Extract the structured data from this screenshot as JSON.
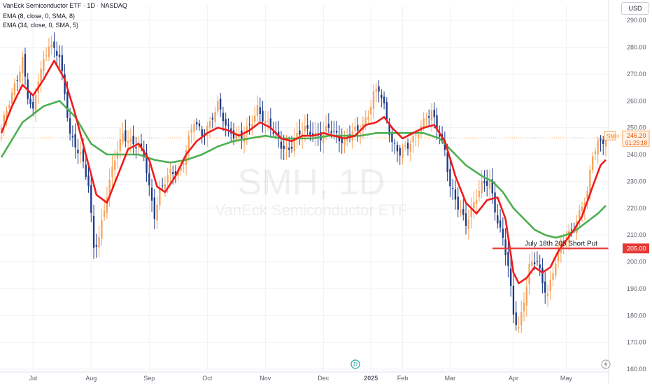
{
  "header": {
    "title": "VanEck Semiconductor ETF · 1D · NASDAQ",
    "indicator1": "EMA (8, close, 0, SMA, 8)",
    "indicator2": "EMA (34, close, 0, SMA, 5)"
  },
  "currency_button": "USD",
  "watermark": {
    "symbol": "SMH, 1D",
    "name": "VanEck Semiconductor ETF"
  },
  "price_tag": {
    "symbol": "SMH",
    "price": "246.20",
    "countdown": "01:25:18"
  },
  "level_tag": "205.00",
  "annotation": "July 18th 205 Short Put",
  "event_badge": "D",
  "colors": {
    "up": "#26a69a",
    "down": "#2962ff",
    "candle_up": "#f7a35c",
    "candle_down": "#1e3a8a",
    "ema_fast": "#ef1c1c",
    "ema_slow": "#4caf50",
    "level": "#e53935"
  },
  "chart_data": {
    "type": "candlestick",
    "ylim": [
      160,
      295
    ],
    "yticks": [
      160,
      170,
      180,
      190,
      200,
      210,
      220,
      230,
      240,
      250,
      260,
      270,
      280,
      290
    ],
    "ytick_labels": [
      "160.00",
      "170.00",
      "180.00",
      "190.00",
      "200.00",
      "210.00",
      "220.00",
      "230.00",
      "240.00",
      "250.00",
      "260.00",
      "270.00",
      "280.00",
      "290.00"
    ],
    "x_labels": [
      "Jul",
      "Aug",
      "Sep",
      "Oct",
      "Nov",
      "Dec",
      "2025",
      "Feb",
      "Mar",
      "Apr",
      "May"
    ],
    "x_label_positions": [
      12,
      34,
      56,
      78,
      100,
      122,
      140,
      152,
      170,
      194,
      214
    ],
    "n_bars": 230,
    "last_price": 246.2,
    "horizontal_level": 205.0,
    "anchors": [
      [
        0,
        250
      ],
      [
        4,
        262
      ],
      [
        8,
        276
      ],
      [
        10,
        262
      ],
      [
        12,
        255
      ],
      [
        14,
        268
      ],
      [
        18,
        282
      ],
      [
        22,
        276
      ],
      [
        24,
        262
      ],
      [
        26,
        248
      ],
      [
        30,
        240
      ],
      [
        33,
        228
      ],
      [
        35,
        205
      ],
      [
        37,
        210
      ],
      [
        40,
        225
      ],
      [
        43,
        238
      ],
      [
        46,
        248
      ],
      [
        50,
        244
      ],
      [
        54,
        240
      ],
      [
        56,
        228
      ],
      [
        58,
        218
      ],
      [
        60,
        226
      ],
      [
        64,
        233
      ],
      [
        68,
        235
      ],
      [
        70,
        242
      ],
      [
        73,
        252
      ],
      [
        76,
        248
      ],
      [
        79,
        252
      ],
      [
        82,
        258
      ],
      [
        85,
        251
      ],
      [
        88,
        248
      ],
      [
        91,
        246
      ],
      [
        94,
        250
      ],
      [
        97,
        258
      ],
      [
        100,
        252
      ],
      [
        103,
        248
      ],
      [
        106,
        244
      ],
      [
        109,
        242
      ],
      [
        112,
        246
      ],
      [
        115,
        250
      ],
      [
        118,
        248
      ],
      [
        121,
        246
      ],
      [
        124,
        250
      ],
      [
        127,
        248
      ],
      [
        130,
        244
      ],
      [
        133,
        248
      ],
      [
        136,
        250
      ],
      [
        139,
        255
      ],
      [
        141,
        262
      ],
      [
        143,
        264
      ],
      [
        145,
        258
      ],
      [
        148,
        245
      ],
      [
        151,
        240
      ],
      [
        154,
        243
      ],
      [
        157,
        248
      ],
      [
        160,
        252
      ],
      [
        163,
        255
      ],
      [
        166,
        248
      ],
      [
        168,
        242
      ],
      [
        170,
        228
      ],
      [
        173,
        220
      ],
      [
        176,
        215
      ],
      [
        179,
        222
      ],
      [
        182,
        228
      ],
      [
        185,
        230
      ],
      [
        187,
        220
      ],
      [
        190,
        208
      ],
      [
        192,
        198
      ],
      [
        194,
        180
      ],
      [
        196,
        176
      ],
      [
        198,
        186
      ],
      [
        200,
        198
      ],
      [
        203,
        200
      ],
      [
        205,
        192
      ],
      [
        207,
        189
      ],
      [
        210,
        200
      ],
      [
        213,
        208
      ],
      [
        216,
        212
      ],
      [
        219,
        218
      ],
      [
        222,
        225
      ],
      [
        224,
        240
      ],
      [
        226,
        245
      ],
      [
        229,
        246.2
      ]
    ],
    "ema_fast_anchors": [
      [
        0,
        248
      ],
      [
        4,
        258
      ],
      [
        8,
        266
      ],
      [
        12,
        262
      ],
      [
        16,
        268
      ],
      [
        20,
        275
      ],
      [
        24,
        268
      ],
      [
        28,
        255
      ],
      [
        32,
        240
      ],
      [
        36,
        225
      ],
      [
        40,
        222
      ],
      [
        44,
        232
      ],
      [
        48,
        242
      ],
      [
        52,
        244
      ],
      [
        56,
        238
      ],
      [
        59,
        228
      ],
      [
        62,
        226
      ],
      [
        66,
        232
      ],
      [
        70,
        240
      ],
      [
        74,
        245
      ],
      [
        78,
        248
      ],
      [
        82,
        250
      ],
      [
        86,
        249
      ],
      [
        90,
        247
      ],
      [
        94,
        249
      ],
      [
        98,
        252
      ],
      [
        102,
        250
      ],
      [
        106,
        246
      ],
      [
        110,
        245
      ],
      [
        114,
        247
      ],
      [
        118,
        247
      ],
      [
        122,
        248
      ],
      [
        126,
        247
      ],
      [
        130,
        246
      ],
      [
        134,
        247
      ],
      [
        138,
        251
      ],
      [
        142,
        252
      ],
      [
        145,
        254
      ],
      [
        148,
        250
      ],
      [
        152,
        246
      ],
      [
        156,
        248
      ],
      [
        160,
        250
      ],
      [
        164,
        251
      ],
      [
        168,
        245
      ],
      [
        172,
        232
      ],
      [
        176,
        222
      ],
      [
        180,
        218
      ],
      [
        184,
        223
      ],
      [
        188,
        224
      ],
      [
        191,
        216
      ],
      [
        194,
        196
      ],
      [
        196,
        192
      ],
      [
        199,
        194
      ],
      [
        202,
        198
      ],
      [
        205,
        196
      ],
      [
        208,
        198
      ],
      [
        211,
        204
      ],
      [
        214,
        208
      ],
      [
        217,
        212
      ],
      [
        220,
        217
      ],
      [
        224,
        228
      ],
      [
        227,
        236
      ],
      [
        229,
        238
      ]
    ],
    "ema_slow_anchors": [
      [
        0,
        239
      ],
      [
        8,
        252
      ],
      [
        16,
        258
      ],
      [
        22,
        260
      ],
      [
        28,
        254
      ],
      [
        34,
        244
      ],
      [
        40,
        240
      ],
      [
        46,
        240
      ],
      [
        52,
        240
      ],
      [
        58,
        238
      ],
      [
        64,
        237
      ],
      [
        70,
        238
      ],
      [
        76,
        240
      ],
      [
        82,
        243
      ],
      [
        88,
        245
      ],
      [
        94,
        246
      ],
      [
        100,
        247
      ],
      [
        106,
        246
      ],
      [
        112,
        246
      ],
      [
        118,
        246
      ],
      [
        124,
        247
      ],
      [
        130,
        247
      ],
      [
        136,
        247
      ],
      [
        142,
        248
      ],
      [
        148,
        248
      ],
      [
        154,
        248
      ],
      [
        160,
        248
      ],
      [
        166,
        246
      ],
      [
        170,
        242
      ],
      [
        176,
        236
      ],
      [
        182,
        232
      ],
      [
        186,
        230
      ],
      [
        190,
        226
      ],
      [
        194,
        220
      ],
      [
        198,
        216
      ],
      [
        202,
        212
      ],
      [
        206,
        210
      ],
      [
        210,
        209
      ],
      [
        214,
        210
      ],
      [
        218,
        212
      ],
      [
        222,
        215
      ],
      [
        226,
        218
      ],
      [
        229,
        221
      ]
    ]
  }
}
